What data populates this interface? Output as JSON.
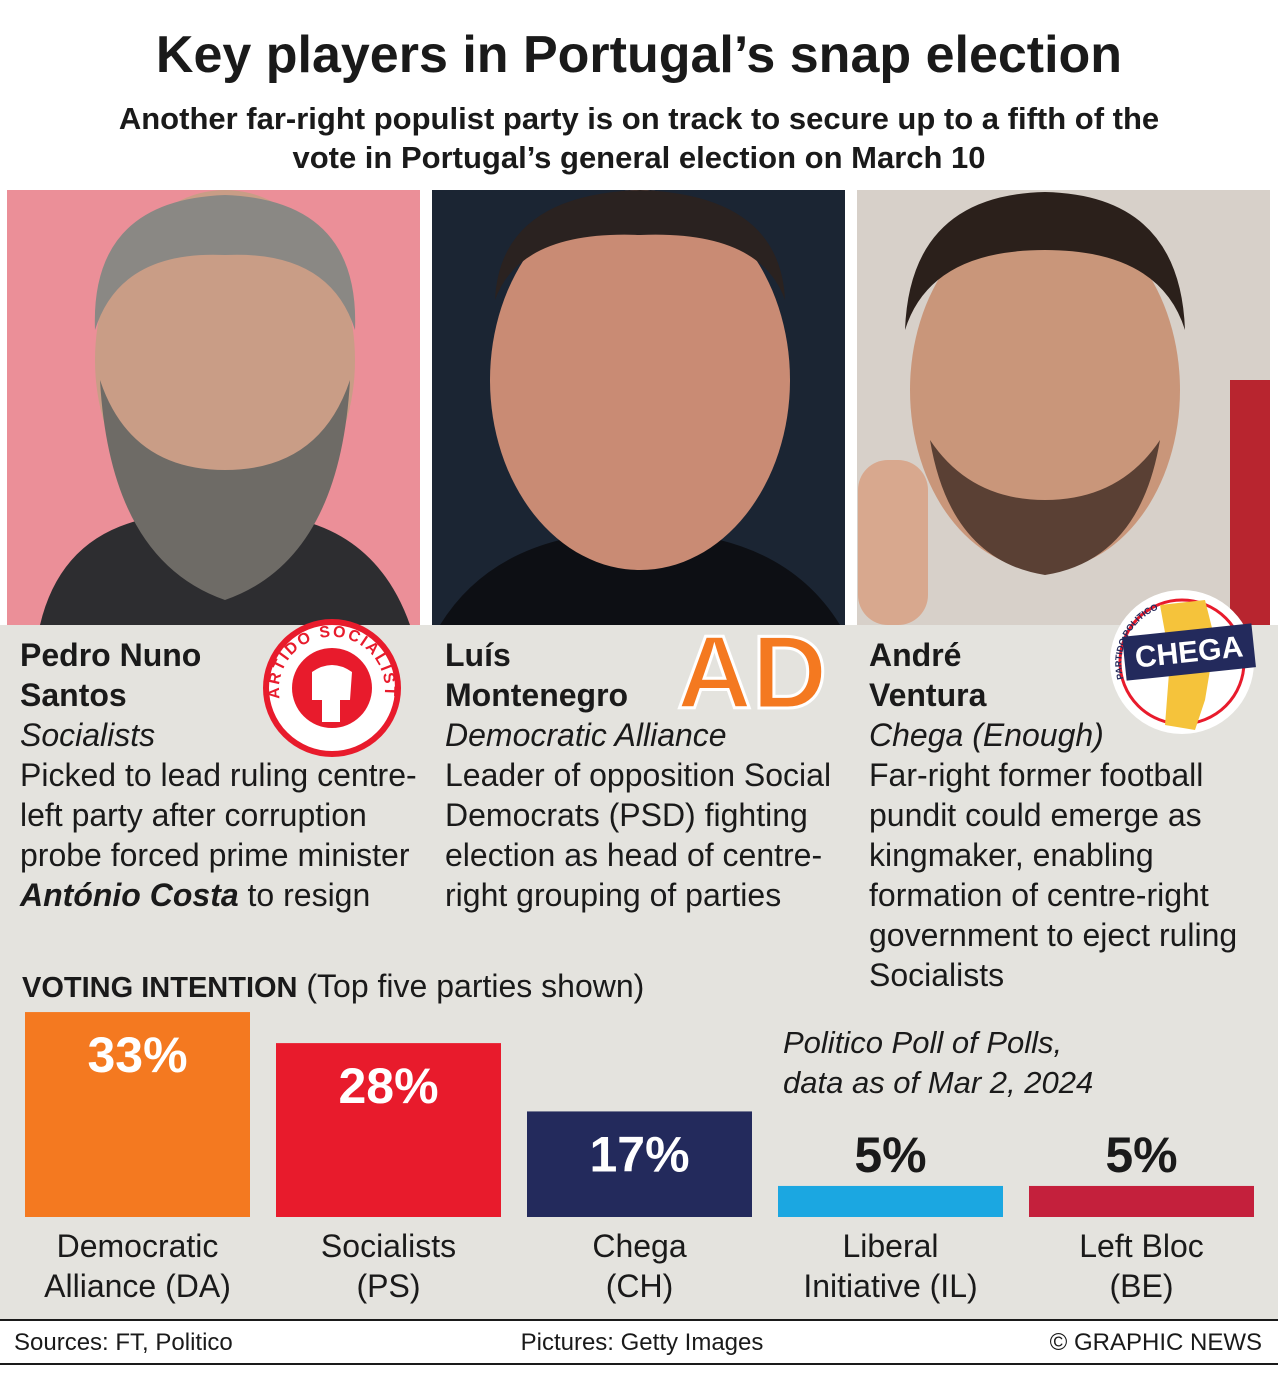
{
  "header": {
    "title": "Key players in Portugal’s snap election",
    "subtitle": "Another far-right populist party is on track to secure up to a fifth of the vote in Portugal’s general election on March 10"
  },
  "profiles": [
    {
      "name": "Pedro Nuno Santos",
      "party": "Socialists",
      "logo": "PARTIDO SOCIALISTA",
      "description": "Picked to lead ruling centre-left party after corruption probe forced prime minister ",
      "emphasis": "António Costa",
      "description_end": " to resign"
    },
    {
      "name": "Luís Montenegro",
      "party": "Democratic Alliance",
      "logo": "AD",
      "description": "Leader of opposition Social Democrats (PSD) fighting election as head of centre-right grouping of parties"
    },
    {
      "name": "André Ventura",
      "party": "Chega (Enough)",
      "logo": "CHEGA",
      "logo_ring": "PARTIDO POLITICO",
      "description": "Far-right former football pundit could emerge as kingmaker, enabling formation of centre-right government to eject ruling Socialists"
    }
  ],
  "chart_data": {
    "type": "bar",
    "title": "VOTING INTENTION",
    "subtitle": "(Top five parties shown)",
    "annotation": "Politico Poll of Polls,\ndata as of Mar 2, 2024",
    "categories": [
      "Democratic\nAlliance (DA)",
      "Socialists\n(PS)",
      "Chega\n(CH)",
      "Liberal\nInitiative (IL)",
      "Left Bloc\n(BE)"
    ],
    "values": [
      33,
      28,
      17,
      5,
      5
    ],
    "value_labels": [
      "33%",
      "28%",
      "17%",
      "5%",
      "5%"
    ],
    "colors": [
      "#f47920",
      "#e81b2c",
      "#232a5c",
      "#1ba7e1",
      "#c4203c"
    ]
  },
  "footer": {
    "sources": "Sources: FT, Politico",
    "pictures": "Pictures: Getty Images",
    "credit": "© GRAPHIC NEWS"
  }
}
